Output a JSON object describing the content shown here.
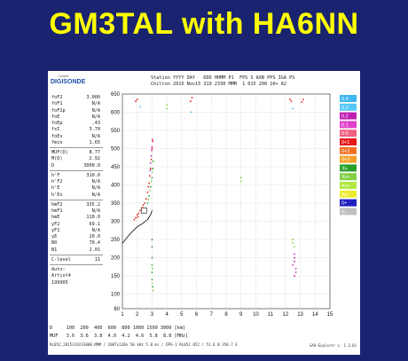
{
  "title": "GM3TAL with HA6NN",
  "ionogram": {
    "logo_top": "Lowell",
    "logo": "DIGISONDE",
    "header_line1": "Station YYYY DAY   DDD HHMM P1  FPS S AXN PPS IGA PS",
    "header_line2": "Chilton 2015 Nov15 319 2330 MMM  1 015 200 10+ A2",
    "params_group1": [
      {
        "label": "foF2",
        "value": "3.000"
      },
      {
        "label": "foF1",
        "value": "N/A"
      },
      {
        "label": "foF1p",
        "value": "N/A"
      },
      {
        "label": "foE",
        "value": "N/A"
      },
      {
        "label": "foEp",
        "value": ".43"
      },
      {
        "label": "fxI",
        "value": "3.70"
      },
      {
        "label": "foEs",
        "value": "N/A"
      },
      {
        "label": "fmin",
        "value": "1.65"
      }
    ],
    "params_group2": [
      {
        "label": "MUF(D)",
        "value": "8.77"
      },
      {
        "label": "M(D)",
        "value": "2.92"
      },
      {
        "label": "D",
        "value": "3000.0"
      }
    ],
    "params_group3": [
      {
        "label": "h'F",
        "value": "310.0"
      },
      {
        "label": "h'F2",
        "value": "N/A"
      },
      {
        "label": "h'E",
        "value": "N/A"
      },
      {
        "label": "h'Es",
        "value": "N/A"
      }
    ],
    "params_group4": [
      {
        "label": "hmF2",
        "value": "335.2"
      },
      {
        "label": "hmF1",
        "value": "N/A"
      },
      {
        "label": "hmE",
        "value": "110.0"
      },
      {
        "label": "yF2",
        "value": "69.1"
      },
      {
        "label": "yF1",
        "value": "N/A"
      },
      {
        "label": "yE",
        "value": "20.0"
      },
      {
        "label": "B0",
        "value": "70.4"
      },
      {
        "label": "B1",
        "value": "2.01"
      }
    ],
    "params_group5": [
      {
        "label": "C-level",
        "value": "11"
      }
    ],
    "autoscale_lines": [
      "Auto:",
      "Artist4",
      "199905"
    ],
    "footer_d_row": "D     100  200  400  600  800 1000 1500 3000 [km]",
    "footer_muf_row": "MUF   3.6  3.6  3.8  4.0  4.2  4.6  5.8  8.8 [MHz]",
    "footer_small": "RL052_2015319233000.MMM / 200Tx12Bn 50 kHz 5.0 ms / DPS-1 RL052 052 / 51.6 N 358.7 E",
    "footer_version": "SAO-Explorer v. 1.3.01"
  },
  "legend": {
    "entries": [
      {
        "label": "0.4",
        "color": "#3fb7f0"
      },
      {
        "label": "0.3",
        "color": "#56c8f5"
      },
      {
        "label": "0.2",
        "color": "#c020b0"
      },
      {
        "label": "0.1",
        "color": "#e040c8"
      },
      {
        "label": "0-0",
        "color": "#f06080"
      },
      {
        "label": "0+1",
        "color": "#e81818"
      },
      {
        "label": "0+2",
        "color": "#f07020"
      },
      {
        "label": "0+3",
        "color": "#f4a028"
      },
      {
        "label": "Xv-",
        "color": "#28a028"
      },
      {
        "label": "Xv+",
        "color": "#80d040"
      },
      {
        "label": "Xv+",
        "color": "#b0e840"
      },
      {
        "label": "Xp-",
        "color": "#ecec30"
      },
      {
        "label": "0+",
        "color": "#2020c0"
      },
      {
        "label": "0-",
        "color": "#c0c0c0"
      }
    ]
  },
  "chart_data": {
    "type": "scatter",
    "title": "",
    "xlabel": "",
    "ylabel": "",
    "xlim": [
      1,
      15
    ],
    "ylim": [
      60,
      650
    ],
    "xticks": [
      1,
      2,
      3,
      4,
      5,
      6,
      7,
      8,
      9,
      10,
      11,
      12,
      13,
      14,
      15
    ],
    "yticks": [
      60,
      100,
      150,
      200,
      250,
      300,
      350,
      400,
      450,
      500,
      550,
      600,
      650
    ],
    "grid": "dotted",
    "series": [
      {
        "color": "#e81818",
        "points": [
          [
            1.9,
            310
          ],
          [
            2.0,
            318
          ],
          [
            2.1,
            322
          ],
          [
            2.2,
            330
          ],
          [
            2.35,
            338
          ],
          [
            2.5,
            350
          ],
          [
            2.6,
            362
          ],
          [
            2.7,
            380
          ],
          [
            2.8,
            405
          ],
          [
            2.85,
            425
          ],
          [
            2.9,
            445
          ],
          [
            2.95,
            470
          ],
          [
            3.0,
            500
          ],
          [
            3.05,
            520
          ],
          [
            1.8,
            305
          ],
          [
            2.05,
            312
          ],
          [
            2.4,
            345
          ],
          [
            2.75,
            395
          ]
        ]
      },
      {
        "color": "#c020b0",
        "points": [
          [
            2.9,
            460
          ],
          [
            2.95,
            480
          ],
          [
            3.0,
            505
          ],
          [
            3.02,
            525
          ],
          [
            2.88,
            440
          ],
          [
            2.98,
            495
          ]
        ]
      },
      {
        "color": "#28a028",
        "points": [
          [
            2.7,
            350
          ],
          [
            2.8,
            370
          ],
          [
            2.9,
            395
          ],
          [
            3.0,
            420
          ],
          [
            3.05,
            445
          ],
          [
            3.08,
            465
          ],
          [
            3.0,
            250
          ],
          [
            3.0,
            230
          ],
          [
            3.0,
            180
          ],
          [
            3.0,
            160
          ],
          [
            3.0,
            140
          ],
          [
            3.05,
            120
          ],
          [
            3.0,
            200
          ]
        ]
      },
      {
        "color": "#80d040",
        "points": [
          [
            2.75,
            360
          ],
          [
            2.85,
            385
          ],
          [
            2.95,
            410
          ],
          [
            3.02,
            435
          ],
          [
            3.05,
            110
          ],
          [
            3.0,
            130
          ],
          [
            3.02,
            170
          ],
          [
            4.0,
            610
          ],
          [
            4.0,
            620
          ],
          [
            9.0,
            420
          ],
          [
            9.0,
            410
          ],
          [
            12.5,
            250
          ],
          [
            12.5,
            240
          ],
          [
            12.6,
            230
          ]
        ]
      },
      {
        "color": "#e81818",
        "points": [
          [
            1.9,
            630
          ],
          [
            2.0,
            635
          ],
          [
            5.6,
            630
          ],
          [
            5.7,
            640
          ],
          [
            12.3,
            635
          ],
          [
            12.4,
            630
          ],
          [
            13.1,
            628
          ],
          [
            13.2,
            635
          ]
        ]
      },
      {
        "color": "#c020b0",
        "points": [
          [
            12.6,
            210
          ],
          [
            12.6,
            190
          ],
          [
            12.7,
            170
          ],
          [
            12.6,
            150
          ],
          [
            12.7,
            160
          ],
          [
            12.6,
            200
          ],
          [
            12.5,
            180
          ]
        ]
      },
      {
        "color": "#3fb7f0",
        "points": [
          [
            2.2,
            615
          ],
          [
            5.65,
            600
          ],
          [
            12.5,
            610
          ]
        ]
      }
    ],
    "curve": [
      [
        1.0,
        240
      ],
      [
        1.5,
        265
      ],
      [
        2.0,
        285
      ],
      [
        2.4,
        295
      ],
      [
        2.7,
        305
      ],
      [
        2.9,
        318
      ],
      [
        3.0,
        330
      ]
    ],
    "curve_color": "#000000"
  }
}
